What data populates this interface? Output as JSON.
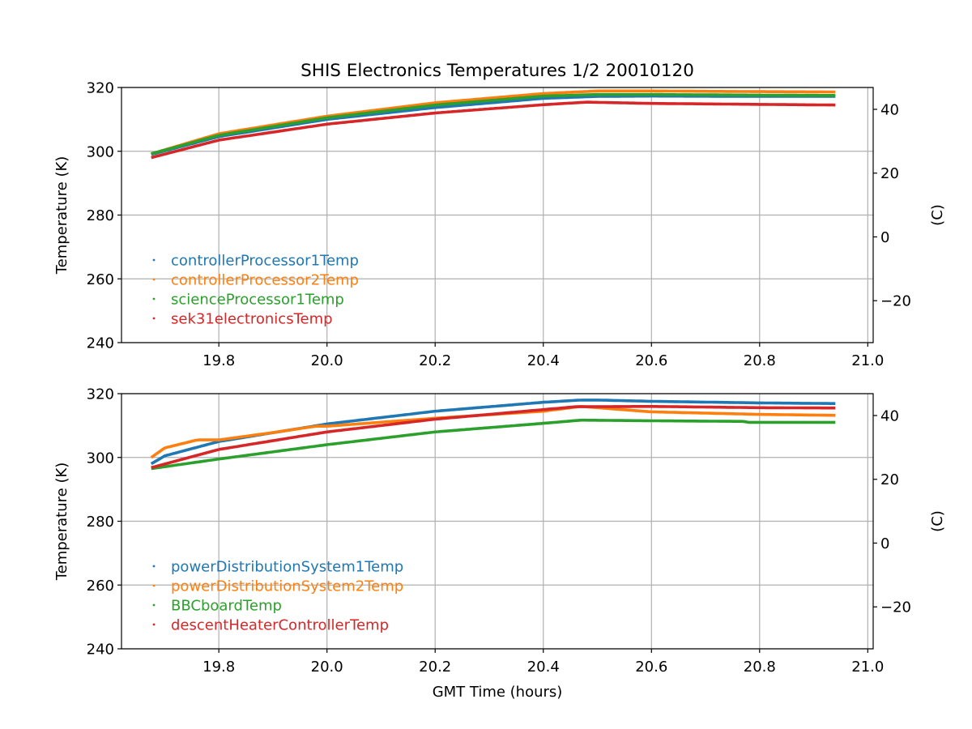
{
  "title": "SHIS Electronics Temperatures 1/2 20010120",
  "chart_data": [
    {
      "type": "scatter",
      "title": "SHIS Electronics Temperatures 1/2 20010120",
      "xlabel": "",
      "ylabel": "Temperature (K)",
      "y2label": "(C)",
      "xlim": [
        19.62,
        21.01
      ],
      "ylim": [
        240,
        320
      ],
      "y2lim": [
        -33.15,
        46.85
      ],
      "xticks": [
        "19.8",
        "20.0",
        "20.2",
        "20.4",
        "20.6",
        "20.8",
        "21.0"
      ],
      "yticks": [
        "240",
        "260",
        "280",
        "300",
        "320"
      ],
      "y2ticks": [
        "−20",
        "0",
        "20",
        "40"
      ],
      "grid": true,
      "legend": "lower-left",
      "series": [
        {
          "name": "controllerProcessor1Temp",
          "color": "#1f77b4",
          "x": [
            19.675,
            19.8,
            20.0,
            20.2,
            20.4,
            20.5,
            20.6,
            20.8,
            20.94
          ],
          "y": [
            299.0,
            304.6,
            310.0,
            313.7,
            316.6,
            317.2,
            317.3,
            317.2,
            317.2
          ]
        },
        {
          "name": "controllerProcessor2Temp",
          "color": "#ff7f0e",
          "x": [
            19.675,
            19.8,
            20.0,
            20.2,
            20.4,
            20.5,
            20.6,
            20.8,
            20.94
          ],
          "y": [
            299.2,
            305.5,
            311.0,
            315.2,
            318.1,
            318.9,
            318.9,
            318.7,
            318.6
          ]
        },
        {
          "name": "scienceProcessor1Temp",
          "color": "#2ca02c",
          "x": [
            19.675,
            19.8,
            20.0,
            20.2,
            20.4,
            20.5,
            20.6,
            20.8,
            20.94
          ],
          "y": [
            299.2,
            305.0,
            310.5,
            314.5,
            317.3,
            317.8,
            317.8,
            317.6,
            317.5
          ]
        },
        {
          "name": "sek31electronicsTemp",
          "color": "#d62728",
          "x": [
            19.675,
            19.8,
            20.0,
            20.2,
            20.4,
            20.48,
            20.6,
            20.8,
            20.94
          ],
          "y": [
            298.0,
            303.5,
            308.5,
            312.0,
            314.6,
            315.4,
            315.0,
            314.7,
            314.5
          ]
        }
      ]
    },
    {
      "type": "scatter",
      "title": "",
      "xlabel": "GMT Time (hours)",
      "ylabel": "Temperature (K)",
      "y2label": "(C)",
      "xlim": [
        19.62,
        21.01
      ],
      "ylim": [
        240,
        320
      ],
      "y2lim": [
        -33.15,
        46.85
      ],
      "xticks": [
        "19.8",
        "20.0",
        "20.2",
        "20.4",
        "20.6",
        "20.8",
        "21.0"
      ],
      "yticks": [
        "240",
        "260",
        "280",
        "300",
        "320"
      ],
      "y2ticks": [
        "−20",
        "0",
        "20",
        "40"
      ],
      "grid": true,
      "legend": "lower-left",
      "series": [
        {
          "name": "powerDistributionSystem1Temp",
          "color": "#1f77b4",
          "x": [
            19.675,
            19.7,
            19.8,
            20.0,
            20.2,
            20.4,
            20.47,
            20.5,
            20.6,
            20.8,
            20.94
          ],
          "y": [
            298.0,
            300.5,
            305.0,
            310.5,
            314.5,
            317.3,
            318.0,
            318.0,
            317.6,
            317.1,
            316.9
          ]
        },
        {
          "name": "powerDistributionSystem2Temp",
          "color": "#ff7f0e",
          "x": [
            19.675,
            19.7,
            19.76,
            19.8,
            19.9,
            19.98,
            20.0,
            20.2,
            20.4,
            20.47,
            20.5,
            20.6,
            20.8,
            20.94
          ],
          "y": [
            300.0,
            303.0,
            305.5,
            305.5,
            307.8,
            309.8,
            309.8,
            312.3,
            314.5,
            316.0,
            315.6,
            314.3,
            313.5,
            313.2
          ]
        },
        {
          "name": "BBCboardTemp",
          "color": "#2ca02c",
          "x": [
            19.675,
            19.8,
            20.0,
            20.2,
            20.4,
            20.47,
            20.6,
            20.77,
            20.78,
            20.94
          ],
          "y": [
            296.5,
            299.5,
            304.0,
            308.0,
            310.7,
            311.7,
            311.5,
            311.3,
            311.0,
            311.0
          ]
        },
        {
          "name": "descentHeaterControllerTemp",
          "color": "#d62728",
          "x": [
            19.675,
            19.8,
            20.0,
            20.2,
            20.4,
            20.46,
            20.6,
            20.8,
            20.94
          ],
          "y": [
            296.8,
            302.5,
            308.0,
            312.0,
            315.0,
            315.9,
            316.0,
            315.6,
            315.5
          ]
        }
      ]
    }
  ]
}
